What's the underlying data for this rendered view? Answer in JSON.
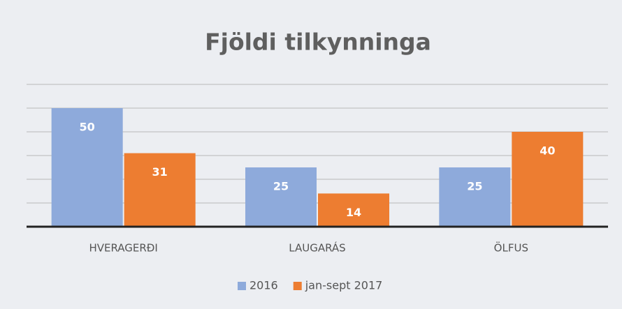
{
  "chart_data": {
    "type": "bar",
    "title": "Fjöldi tilkynninga",
    "categories": [
      "HVERAGERÐI",
      "LAUGARÁS",
      "ÖLFUS"
    ],
    "series": [
      {
        "name": "2016",
        "color": "#8eaadb",
        "values": [
          50,
          25,
          25
        ]
      },
      {
        "name": "jan-sept 2017",
        "color": "#ed7d31",
        "values": [
          31,
          14,
          40
        ]
      }
    ],
    "ylim": [
      0,
      60
    ],
    "yticks": [
      0,
      10,
      20,
      30,
      40,
      50,
      60
    ],
    "grid": true,
    "legend": "bottom"
  }
}
